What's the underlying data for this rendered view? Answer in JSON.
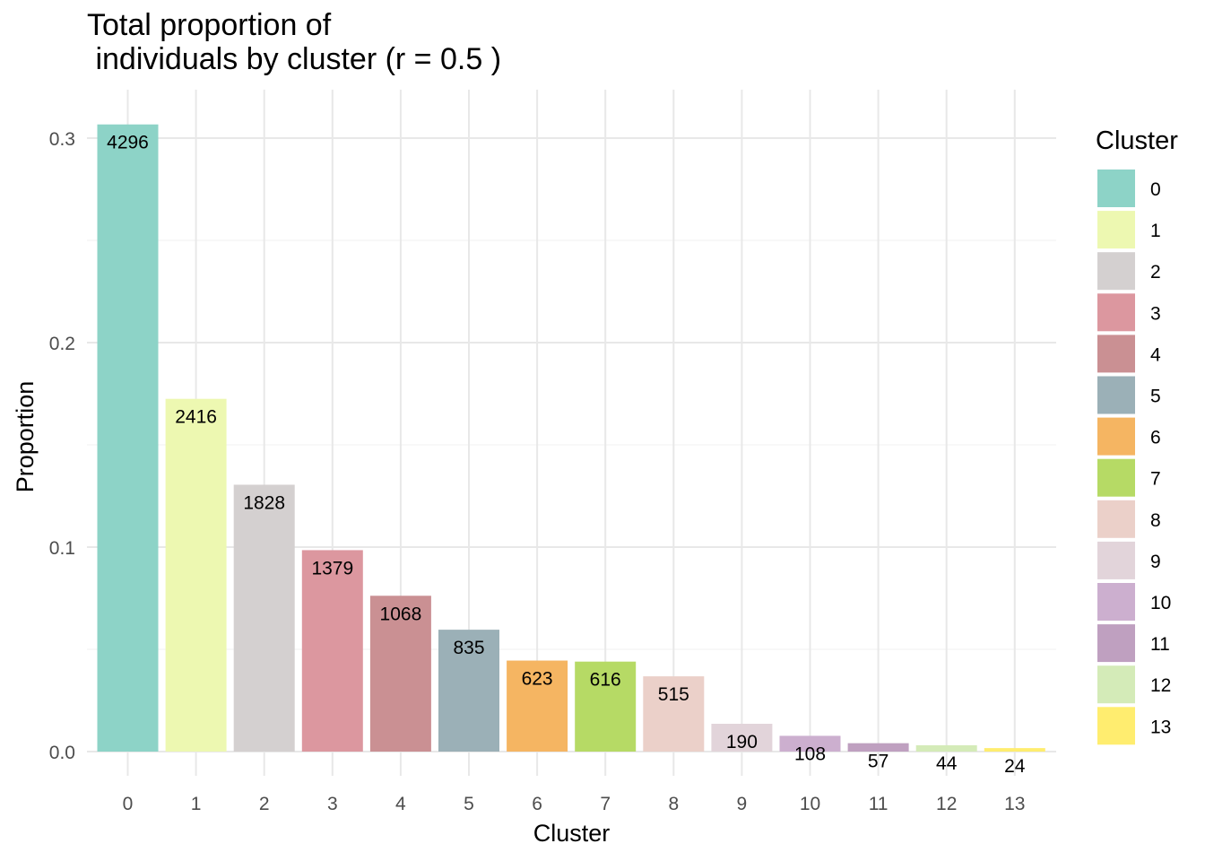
{
  "chart_data": {
    "type": "bar",
    "title_lines": [
      "Total proportion of",
      " individuals by cluster (r = 0.5 )"
    ],
    "xlabel": "Cluster",
    "ylabel": "Proportion",
    "categories": [
      "0",
      "1",
      "2",
      "3",
      "4",
      "5",
      "6",
      "7",
      "8",
      "9",
      "10",
      "11",
      "12",
      "13"
    ],
    "values": [
      0.3067,
      0.1725,
      0.1305,
      0.0985,
      0.0762,
      0.0596,
      0.0445,
      0.044,
      0.0368,
      0.0136,
      0.0077,
      0.0041,
      0.0031,
      0.0017
    ],
    "labels": [
      "4296",
      "2416",
      "1828",
      "1379",
      "1068",
      "835",
      "623",
      "616",
      "515",
      "190",
      "108",
      "57",
      "44",
      "24"
    ],
    "colors": [
      "#8DD3C7",
      "#EDF8B1",
      "#D4D0D0",
      "#DC979F",
      "#CA9093",
      "#9BB0B7",
      "#F5B562",
      "#B6DA65",
      "#EBD0C9",
      "#E2D4DA",
      "#CCAFCF",
      "#BFA0C0",
      "#D4EBB8",
      "#FFED6F"
    ],
    "ylim": [
      0,
      0.307
    ],
    "yticks": [
      0.0,
      0.1,
      0.2,
      0.3
    ],
    "ytick_labels": [
      "0.0",
      "0.1",
      "0.2",
      "0.3"
    ],
    "grid": true,
    "legend": {
      "title": "Cluster",
      "placement": "right",
      "entries": [
        "0",
        "1",
        "2",
        "3",
        "4",
        "5",
        "6",
        "7",
        "8",
        "9",
        "10",
        "11",
        "12",
        "13"
      ]
    }
  }
}
